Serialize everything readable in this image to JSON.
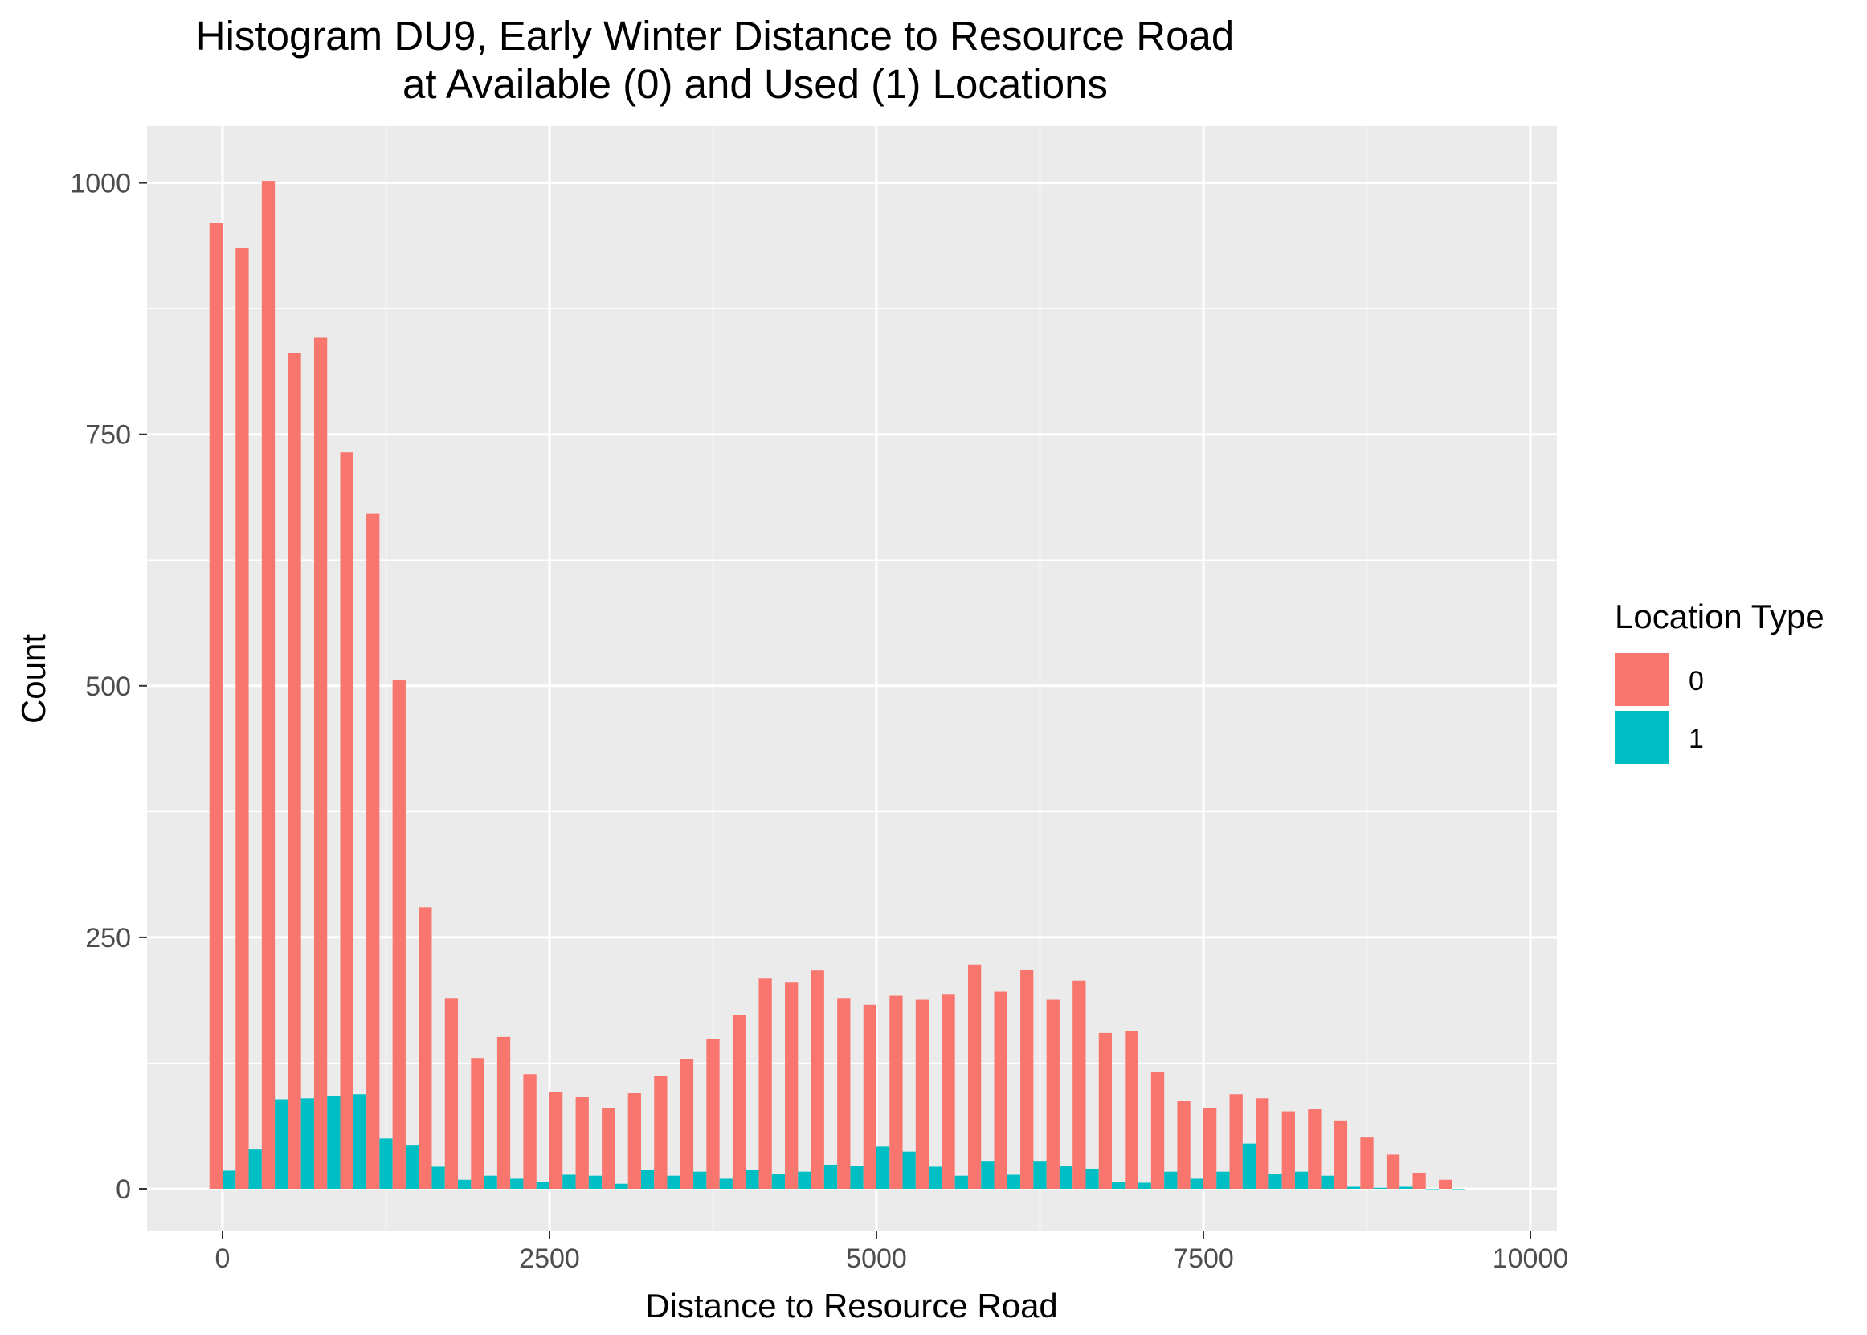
{
  "chart_data": {
    "type": "bar",
    "title": "Histogram DU9, Early Winter Distance to Resource Road",
    "subtitle": "at Available (0) and Used (1) Locations",
    "xlabel": "Distance to Resource Road",
    "ylabel": "Count",
    "xlim": [
      -700,
      10000
    ],
    "ylim": [
      -50,
      1055
    ],
    "x_ticks": [
      0,
      2500,
      5000,
      7500,
      10000
    ],
    "y_ticks": [
      0,
      250,
      500,
      750,
      1000
    ],
    "bin_width": 200,
    "bin_centers": [
      0,
      200,
      400,
      600,
      800,
      1000,
      1200,
      1400,
      1600,
      1800,
      2000,
      2200,
      2400,
      2600,
      2800,
      3000,
      3200,
      3400,
      3600,
      3800,
      4000,
      4200,
      4400,
      4600,
      4800,
      5000,
      5200,
      5400,
      5600,
      5800,
      6000,
      6200,
      6400,
      6600,
      6800,
      7000,
      7200,
      7400,
      7600,
      7800,
      8000,
      8200,
      8400,
      8600,
      8800,
      9000,
      9200,
      9400
    ],
    "series": [
      {
        "name": "0",
        "color": "#F8766D",
        "values": [
          960,
          935,
          1002,
          831,
          846,
          732,
          671,
          506,
          280,
          189,
          130,
          151,
          114,
          96,
          91,
          80,
          95,
          112,
          129,
          149,
          173,
          209,
          205,
          217,
          189,
          183,
          192,
          188,
          193,
          223,
          196,
          218,
          188,
          207,
          155,
          157,
          116,
          87,
          80,
          94,
          90,
          77,
          79,
          68,
          51,
          34,
          16,
          9
        ]
      },
      {
        "name": "1",
        "color": "#00BFC4",
        "values": [
          18,
          39,
          89,
          90,
          92,
          94,
          50,
          43,
          22,
          9,
          13,
          10,
          7,
          14,
          13,
          5,
          19,
          13,
          17,
          10,
          19,
          15,
          17,
          24,
          23,
          42,
          37,
          22,
          13,
          27,
          14,
          27,
          23,
          20,
          7,
          6,
          17,
          10,
          17,
          45,
          15,
          17,
          13,
          2,
          1,
          2,
          0,
          0
        ]
      }
    ],
    "legend": {
      "title": "Location Type",
      "position": "right",
      "labels": [
        "0",
        "1"
      ]
    },
    "grid": true,
    "panel_background": "#EBEBEB"
  }
}
